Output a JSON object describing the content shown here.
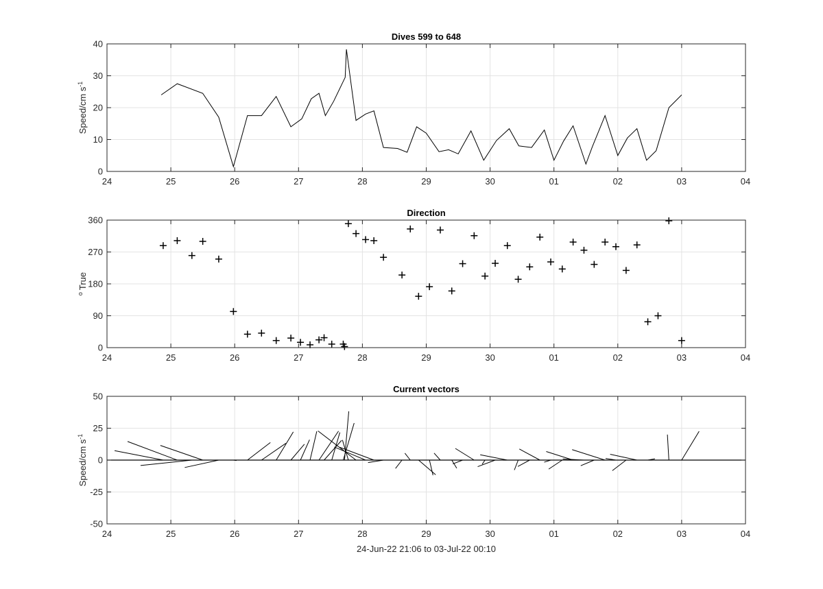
{
  "chart_data": [
    {
      "type": "line",
      "title": "Dives 599 to 648",
      "ylabel": "Speed/cm s",
      "ylabel_sup": "-1",
      "xlim": [
        24,
        34
      ],
      "ylim": [
        0,
        40
      ],
      "xtick_labels": [
        "24",
        "25",
        "26",
        "27",
        "28",
        "29",
        "30",
        "01",
        "02",
        "03",
        "04"
      ],
      "ytick_labels": [
        "0",
        "10",
        "20",
        "30",
        "40"
      ],
      "grid": true,
      "series": [
        {
          "x": [
            24.85,
            25.1,
            25.5,
            25.75,
            25.98,
            26.2,
            26.42,
            26.65,
            26.88,
            27.05,
            27.2,
            27.32,
            27.42,
            27.55,
            27.73,
            27.75,
            27.9,
            28.05,
            28.18,
            28.33,
            28.55,
            28.7,
            28.85,
            29.0,
            29.2,
            29.35,
            29.5,
            29.7,
            29.9,
            30.1,
            30.3,
            30.45,
            30.65,
            30.85,
            31.0,
            31.15,
            31.3,
            31.5,
            31.6,
            31.8,
            32.0,
            32.15,
            32.3,
            32.45,
            32.6,
            32.8,
            33.0
          ],
          "y": [
            24,
            27.5,
            24.5,
            17,
            1.5,
            17.5,
            17.5,
            23.5,
            14,
            16.5,
            22.8,
            24.5,
            17.5,
            22,
            29.5,
            38.3,
            16,
            18,
            19,
            7.5,
            7.2,
            6,
            14,
            12,
            6.2,
            6.8,
            5.5,
            12.7,
            3.5,
            9.7,
            13.4,
            8,
            7.5,
            13,
            3.5,
            9.5,
            14.3,
            2.3,
            7.7,
            17.5,
            5,
            10.5,
            13.4,
            3.5,
            6.5,
            20,
            24
          ]
        }
      ]
    },
    {
      "type": "scatter",
      "title": "Direction",
      "ylabel": "True",
      "ylabel_pre": "o",
      "xlim": [
        24,
        34
      ],
      "ylim": [
        0,
        360
      ],
      "xtick_labels": [
        "24",
        "25",
        "26",
        "27",
        "28",
        "29",
        "30",
        "01",
        "02",
        "03",
        "04"
      ],
      "ytick_labels": [
        "0",
        "90",
        "180",
        "270",
        "360"
      ],
      "grid": true,
      "marker": "+",
      "series": [
        {
          "x": [
            24.88,
            25.1,
            25.33,
            25.5,
            25.75,
            25.98,
            26.2,
            26.42,
            26.65,
            26.88,
            27.03,
            27.18,
            27.32,
            27.4,
            27.52,
            27.7,
            27.72,
            27.78,
            27.9,
            28.05,
            28.18,
            28.33,
            28.62,
            28.75,
            28.88,
            29.05,
            29.22,
            29.4,
            29.57,
            29.75,
            29.92,
            30.08,
            30.27,
            30.44,
            30.62,
            30.78,
            30.95,
            31.13,
            31.3,
            31.47,
            31.63,
            31.8,
            31.97,
            32.13,
            32.3,
            32.47,
            32.63,
            32.8,
            33.0
          ],
          "y": [
            288,
            302,
            260,
            300,
            250,
            102,
            38,
            41,
            20,
            27,
            15,
            8,
            22,
            28,
            10,
            10,
            3,
            350,
            322,
            305,
            302,
            255,
            205,
            335,
            145,
            172,
            332,
            160,
            237,
            316,
            202,
            238,
            288,
            193,
            228,
            312,
            242,
            222,
            298,
            275,
            235,
            298,
            285,
            218,
            290,
            73,
            90,
            358,
            20
          ]
        }
      ]
    },
    {
      "type": "vector",
      "title": "Current vectors",
      "ylabel": "Speed/cm s",
      "ylabel_sup": "-1",
      "xlabel": "24-Jun-22 21:06 to 03-Jul-22 00:10",
      "xlim": [
        24,
        34
      ],
      "ylim": [
        -50,
        50
      ],
      "xtick_labels": [
        "24",
        "25",
        "26",
        "27",
        "28",
        "29",
        "30",
        "01",
        "02",
        "03",
        "04"
      ],
      "ytick_labels": [
        "-50",
        "-25",
        "0",
        "25",
        "50"
      ],
      "grid": true,
      "series": [
        {
          "x": [
            24.88,
            25.1,
            25.33,
            25.5,
            25.75,
            25.98,
            26.2,
            26.42,
            26.65,
            26.88,
            27.03,
            27.18,
            27.32,
            27.4,
            27.52,
            27.7,
            27.72,
            27.78,
            27.9,
            28.05,
            28.18,
            28.33,
            28.62,
            28.75,
            28.88,
            29.05,
            29.22,
            29.4,
            29.57,
            29.75,
            29.92,
            30.08,
            30.27,
            30.44,
            30.62,
            30.78,
            30.95,
            31.13,
            31.3,
            31.47,
            31.63,
            31.8,
            31.97,
            32.13,
            32.3,
            32.47,
            32.63,
            32.8,
            33.0
          ],
          "speed": [
            24,
            27.5,
            24.5,
            23,
            17,
            1.5,
            17.5,
            17.5,
            23.5,
            14,
            16.5,
            22.8,
            24.5,
            17.5,
            22,
            29.5,
            38.3,
            16,
            29,
            18,
            19,
            7.5,
            7.2,
            6,
            14,
            12,
            6.2,
            6.8,
            5.5,
            12.7,
            3.5,
            9.7,
            13.4,
            8,
            7.5,
            13,
            3.5,
            9.5,
            14.3,
            10,
            7.7,
            17.5,
            5,
            10.5,
            13.4,
            3.5,
            6.5,
            20,
            24
          ],
          "direction": [
            288,
            302,
            260,
            300,
            250,
            102,
            38,
            41,
            20,
            27,
            15,
            8,
            22,
            28,
            10,
            10,
            3,
            350,
            322,
            305,
            302,
            255,
            205,
            335,
            145,
            172,
            332,
            160,
            237,
            316,
            202,
            238,
            288,
            193,
            228,
            312,
            242,
            222,
            298,
            275,
            235,
            298,
            285,
            218,
            290,
            73,
            90,
            358,
            20
          ]
        }
      ]
    }
  ]
}
